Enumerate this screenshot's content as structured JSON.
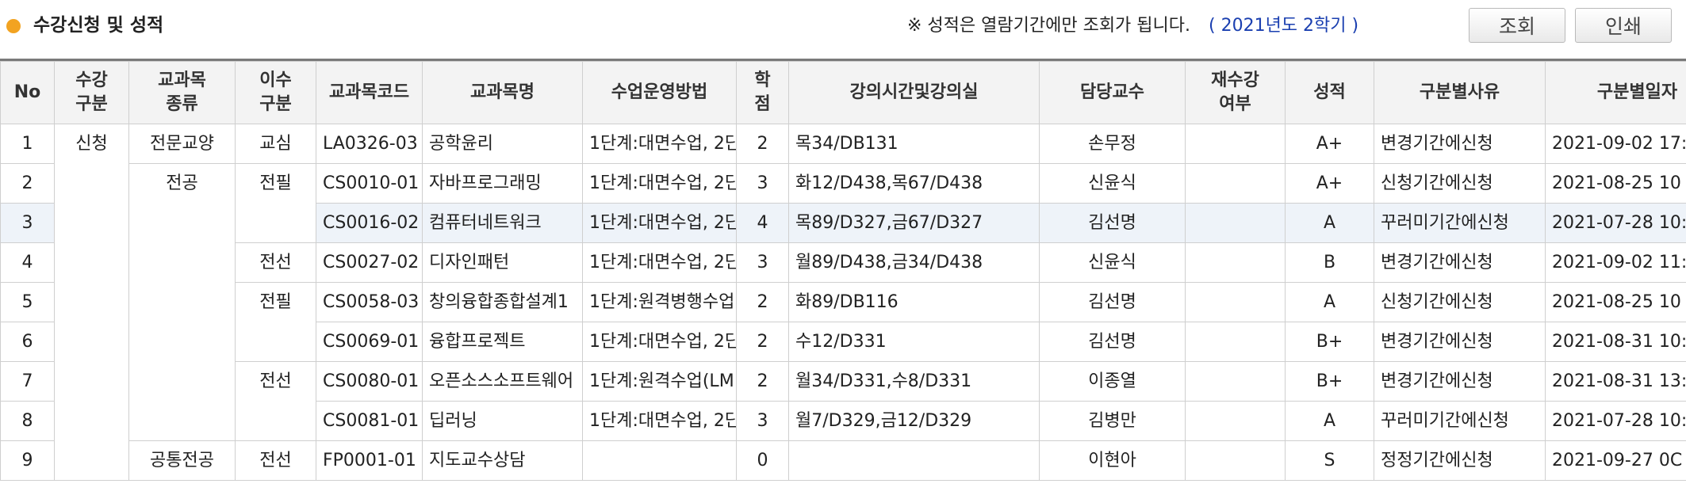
{
  "header": {
    "title": "수강신청 및 성적",
    "notice": "※ 성적은 열람기간에만 조회가 됩니다.",
    "term": "( 2021년도 2학기 )",
    "search_label": "조회",
    "print_label": "인쇄"
  },
  "columns": [
    "No",
    "수강구분",
    "교과목종류",
    "이수구분",
    "교과목코드",
    "교과목명",
    "수업운영방법",
    "학점",
    "강의시간및강의실",
    "담당교수",
    "재수강여부",
    "성적",
    "구분별사유",
    "구분별일자"
  ],
  "rows": [
    {
      "no": "1",
      "reg": "신청",
      "type": "전문교양",
      "comp": "교심",
      "code": "LA0326-03",
      "name": "공학윤리",
      "method": "1단계:대면수업, 2단",
      "credit": "2",
      "time": "목34/DB131",
      "prof": "손무정",
      "retake": "",
      "grade": "A+",
      "reason": "변경기간에신청",
      "date": "2021-09-02 17:"
    },
    {
      "no": "2",
      "reg": "",
      "type": "전공",
      "comp": "전필",
      "code": "CS0010-01",
      "name": "자바프로그래밍",
      "method": "1단계:대면수업, 2단",
      "credit": "3",
      "time": "화12/D438,목67/D438",
      "prof": "신윤식",
      "retake": "",
      "grade": "A+",
      "reason": "신청기간에신청",
      "date": "2021-08-25 10"
    },
    {
      "no": "3",
      "reg": "",
      "type": "",
      "comp": "",
      "code": "CS0016-02",
      "name": "컴퓨터네트워크",
      "method": "1단계:대면수업, 2단",
      "credit": "4",
      "time": "목89/D327,금67/D327",
      "prof": "김선명",
      "retake": "",
      "grade": "A",
      "reason": "꾸러미기간에신청",
      "date": "2021-07-28 10:"
    },
    {
      "no": "4",
      "reg": "",
      "type": "",
      "comp": "전선",
      "code": "CS0027-02",
      "name": "디자인패턴",
      "method": "1단계:대면수업, 2단",
      "credit": "3",
      "time": "월89/D438,금34/D438",
      "prof": "신윤식",
      "retake": "",
      "grade": "B",
      "reason": "변경기간에신청",
      "date": "2021-09-02 11:"
    },
    {
      "no": "5",
      "reg": "",
      "type": "",
      "comp": "전필",
      "code": "CS0058-03",
      "name": "창의융합종합설계1",
      "method": "1단계:원격병행수업",
      "credit": "2",
      "time": "화89/DB116",
      "prof": "김선명",
      "retake": "",
      "grade": "A",
      "reason": "신청기간에신청",
      "date": "2021-08-25 10"
    },
    {
      "no": "6",
      "reg": "",
      "type": "",
      "comp": "",
      "code": "CS0069-01",
      "name": "융합프로젝트",
      "method": "1단계:대면수업, 2단",
      "credit": "2",
      "time": "수12/D331",
      "prof": "김선명",
      "retake": "",
      "grade": "B+",
      "reason": "변경기간에신청",
      "date": "2021-08-31 10:"
    },
    {
      "no": "7",
      "reg": "",
      "type": "",
      "comp": "전선",
      "code": "CS0080-01",
      "name": "오픈소스소프트웨어",
      "method": "1단계:원격수업(LM",
      "credit": "2",
      "time": "월34/D331,수8/D331",
      "prof": "이종열",
      "retake": "",
      "grade": "B+",
      "reason": "변경기간에신청",
      "date": "2021-08-31 13:"
    },
    {
      "no": "8",
      "reg": "",
      "type": "",
      "comp": "",
      "code": "CS0081-01",
      "name": "딥러닝",
      "method": "1단계:대면수업, 2단",
      "credit": "3",
      "time": "월7/D329,금12/D329",
      "prof": "김병만",
      "retake": "",
      "grade": "A",
      "reason": "꾸러미기간에신청",
      "date": "2021-07-28 10:"
    },
    {
      "no": "9",
      "reg": "",
      "type": "공통전공",
      "comp": "전선",
      "code": "FP0001-01",
      "name": "지도교수상담",
      "method": "",
      "credit": "0",
      "time": "",
      "prof": "이현아",
      "retake": "",
      "grade": "S",
      "reason": "정정기간에신청",
      "date": "2021-09-27 0C"
    }
  ]
}
